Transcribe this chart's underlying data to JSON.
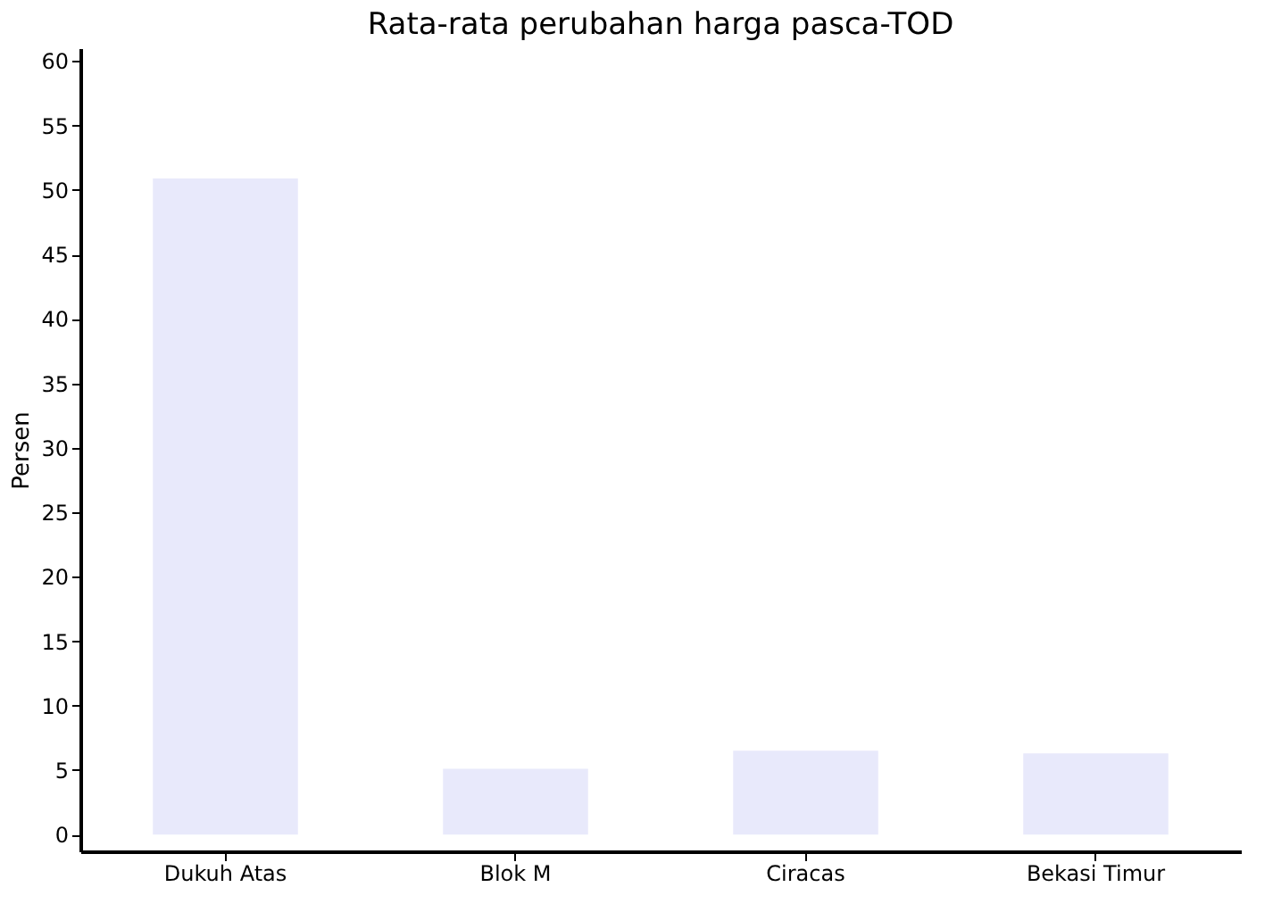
{
  "chart_data": {
    "type": "bar",
    "title": "Rata-rata perubahan harga pasca-TOD",
    "ylabel": "Persen",
    "categories": [
      "Dukuh Atas",
      "Blok M",
      "Ciracas",
      "Bekasi Timur"
    ],
    "values": [
      50.9,
      5.1,
      6.5,
      6.3
    ],
    "color": "#e8e9fb",
    "ylim": [
      -1.3,
      61
    ],
    "yticks": [
      0,
      5,
      10,
      15,
      20,
      25,
      30,
      35,
      40,
      45,
      50,
      55,
      60
    ],
    "grid": false
  }
}
